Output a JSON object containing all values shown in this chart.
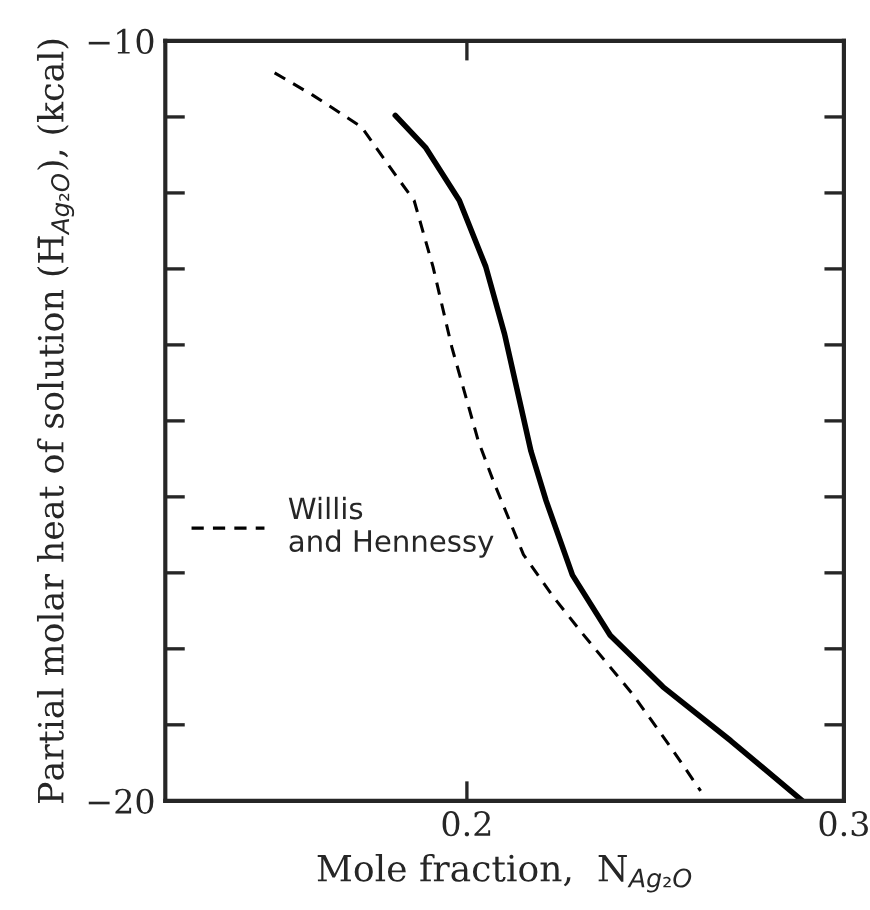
{
  "chart_data": {
    "type": "line",
    "xlabel": "Mole fraction,  N$_{Ag₂O}$",
    "ylabel": "Partial molar heat of solution (H̄$_{Ag₂O}$), (kcal)",
    "xlim": [
      0.12,
      0.3
    ],
    "xticks": [
      0.2,
      0.3
    ],
    "ylim": [
      -20,
      -10
    ],
    "yticks": [
      -20,
      {
        "value": -19,
        "label": null
      },
      {
        "value": -18,
        "label": null
      },
      {
        "value": -17,
        "label": null
      },
      {
        "value": -16,
        "label": null
      },
      {
        "value": -15,
        "label": null
      },
      {
        "value": -14,
        "label": null
      },
      {
        "value": -13,
        "label": null
      },
      {
        "value": -12,
        "label": null
      },
      {
        "value": -11,
        "label": null
      },
      -10
    ],
    "grid": false,
    "legend": "left",
    "marker": "none",
    "series": [
      {
        "name": "Willis\nand Hennessy",
        "color": "#000000",
        "line_style": "dashed",
        "x": [
          0.149,
          0.159,
          0.172,
          0.181,
          0.186,
          0.191,
          0.196,
          0.203,
          0.207,
          0.215,
          0.223,
          0.231,
          0.244,
          0.254,
          0.262
        ],
        "values": [
          -10.42,
          -10.71,
          -11.13,
          -11.76,
          -12.1,
          -12.97,
          -14.03,
          -15.26,
          -15.79,
          -16.76,
          -17.32,
          -17.82,
          -18.6,
          -19.29,
          -19.87
        ]
      },
      {
        "color": "#000000",
        "line_style": "solid",
        "x": [
          0.181,
          0.189,
          0.198,
          0.205,
          0.21,
          0.214,
          0.217,
          0.221,
          0.228,
          0.238,
          0.252,
          0.27,
          0.289
        ],
        "values": [
          -10.98,
          -11.4,
          -12.1,
          -12.97,
          -13.86,
          -14.74,
          -15.4,
          -16.05,
          -17.03,
          -17.82,
          -18.5,
          -19.21,
          -20
        ]
      }
    ]
  }
}
